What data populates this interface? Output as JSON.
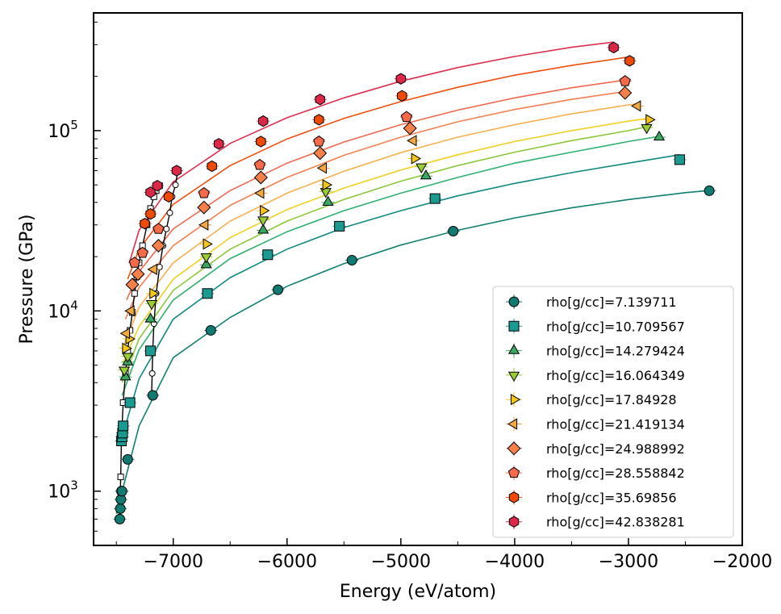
{
  "chart_data": {
    "type": "scatter",
    "xlabel": "Energy (eV/atom)",
    "ylabel": "Pressure (GPa)",
    "xlim": [
      -7700,
      -2000
    ],
    "ylim": [
      500,
      450000
    ],
    "yscale": "log",
    "xticks": [
      -7000,
      -6000,
      -5000,
      -4000,
      -3000,
      -2000
    ],
    "xtick_labels": [
      "−7000",
      "−6000",
      "−5000",
      "−4000",
      "−3000",
      "−2000"
    ],
    "yticks": [
      1000,
      10000,
      100000
    ],
    "ytick_labels": [
      {
        "base": "10",
        "exp": "3"
      },
      {
        "base": "10",
        "exp": "4"
      },
      {
        "base": "10",
        "exp": "5"
      }
    ],
    "grid": false,
    "legend_position": "lower-right",
    "series": [
      {
        "name": "rho[g/cc]=7.139711",
        "marker": "circle",
        "color": "#107a70",
        "x": [
          -7470,
          -7465,
          -7460,
          -7455,
          -7450,
          -7400,
          -7180,
          -6670,
          -6080,
          -5430,
          -4540,
          -2290
        ],
        "y": [
          700,
          800,
          900,
          1000,
          1000,
          1500,
          3400,
          7800,
          13100,
          19100,
          27700,
          46400
        ],
        "fit_x": [
          -7500,
          -7300,
          -7000,
          -6500,
          -6000,
          -5500,
          -5000,
          -4500,
          -4000,
          -3500,
          -3000,
          -2500,
          -2300
        ],
        "fit_y": [
          750,
          2300,
          5500,
          9200,
          13700,
          18300,
          23200,
          28000,
          32800,
          37300,
          41500,
          45300,
          46500
        ],
        "fit_color": "#108070"
      },
      {
        "name": "rho[g/cc]=10.709567",
        "marker": "square",
        "color": "#1a9a90",
        "x": [
          -7455,
          -7450,
          -7445,
          -7440,
          -7380,
          -7200,
          -6700,
          -6170,
          -5540,
          -4700,
          -2550
        ],
        "y": [
          1900,
          2000,
          2100,
          2300,
          3100,
          6000,
          12500,
          20500,
          29500,
          42000,
          69000
        ],
        "fit_x": [
          -7460,
          -7300,
          -7000,
          -6500,
          -6000,
          -5500,
          -5000,
          -4500,
          -4000,
          -3500,
          -3000,
          -2550
        ],
        "fit_y": [
          1900,
          4200,
          9000,
          15300,
          22000,
          29000,
          36000,
          43500,
          51000,
          58500,
          66000,
          73500
        ],
        "fit_color": "#108a80"
      },
      {
        "name": "rho[g/cc]=14.279424",
        "marker": "triangle-up",
        "color": "#3aa860",
        "x": [
          -7420,
          -7400,
          -7200,
          -6710,
          -6210,
          -5640,
          -4780,
          -2730
        ],
        "y": [
          4300,
          5200,
          9000,
          18000,
          28000,
          40000,
          56000,
          92000
        ],
        "fit_x": [
          -7450,
          -7300,
          -7000,
          -6500,
          -6000,
          -5500,
          -5000,
          -4500,
          -4000,
          -3500,
          -3000,
          -2730
        ],
        "fit_y": [
          3400,
          6100,
          11500,
          19500,
          27500,
          36000,
          45000,
          55000,
          66000,
          76000,
          87000,
          93000
        ],
        "fit_color": "#30b070"
      },
      {
        "name": "rho[g/cc]=16.064349",
        "marker": "triangle-down",
        "color": "#9acd32",
        "x": [
          -7430,
          -7400,
          -7190,
          -6710,
          -6210,
          -5660,
          -4820,
          -2840
        ],
        "y": [
          4700,
          5600,
          11000,
          20000,
          32000,
          46000,
          63000,
          104000
        ],
        "fit_x": [
          -7450,
          -7300,
          -7000,
          -6500,
          -6000,
          -5500,
          -5000,
          -4500,
          -4000,
          -3500,
          -3000,
          -2840
        ],
        "fit_y": [
          4000,
          7000,
          13000,
          22000,
          31500,
          41500,
          52500,
          64000,
          76000,
          88000,
          100000,
          105000
        ],
        "fit_color": "#8cc83c"
      },
      {
        "name": "rho[g/cc]=17.84928",
        "marker": "triangle-right",
        "color": "#f5c518",
        "x": [
          -7420,
          -7390,
          -7180,
          -6710,
          -6210,
          -5660,
          -4880,
          -2820
        ],
        "y": [
          6200,
          7000,
          12500,
          23500,
          36000,
          50000,
          70000,
          115000
        ],
        "fit_x": [
          -7440,
          -7300,
          -7000,
          -6500,
          -6000,
          -5500,
          -5000,
          -4500,
          -4000,
          -3500,
          -3000,
          -2820
        ],
        "fit_y": [
          5200,
          8200,
          15000,
          25500,
          36500,
          48000,
          60500,
          73500,
          87000,
          100000,
          113000,
          117000
        ],
        "fit_color": "#f0d020"
      },
      {
        "name": "rho[g/cc]=21.419134",
        "marker": "triangle-left",
        "color": "#f5a840",
        "x": [
          -7410,
          -7370,
          -7170,
          -6720,
          -6230,
          -5680,
          -4890,
          -2920
        ],
        "y": [
          7500,
          10000,
          17000,
          30000,
          45000,
          62000,
          88000,
          137000
        ],
        "fit_x": [
          -7430,
          -7300,
          -7000,
          -6500,
          -6000,
          -5500,
          -5000,
          -4500,
          -4000,
          -3500,
          -3000,
          -2920
        ],
        "fit_y": [
          6500,
          10500,
          18500,
          31500,
          45000,
          59500,
          75500,
          92000,
          108000,
          124000,
          139000,
          141000
        ],
        "fit_color": "#f5b050"
      },
      {
        "name": "rho[g/cc]=24.988992",
        "marker": "diamond",
        "color": "#f5804a",
        "x": [
          -7360,
          -7310,
          -7130,
          -6730,
          -6230,
          -5710,
          -4920,
          -3030
        ],
        "y": [
          14000,
          16000,
          23000,
          37500,
          55000,
          75000,
          103000,
          162000
        ],
        "fit_x": [
          -7420,
          -7300,
          -7000,
          -6500,
          -6000,
          -5500,
          -5000,
          -4500,
          -4000,
          -3500,
          -3000
        ],
        "fit_y": [
          9000,
          13500,
          23000,
          38500,
          55000,
          73000,
          92000,
          112000,
          131000,
          149000,
          166000
        ],
        "fit_color": "#f28050"
      },
      {
        "name": "rho[g/cc]=28.558842",
        "marker": "pentagon",
        "color": "#f56a48",
        "x": [
          -7340,
          -7270,
          -7130,
          -6730,
          -6240,
          -5720,
          -4950,
          -3030
        ],
        "y": [
          18500,
          21000,
          28500,
          45000,
          64500,
          87000,
          119000,
          188000
        ],
        "fit_x": [
          -7410,
          -7300,
          -7000,
          -6500,
          -6000,
          -5500,
          -5000,
          -4500,
          -4000,
          -3500,
          -3000
        ],
        "fit_y": [
          11500,
          16500,
          28500,
          46500,
          66000,
          86500,
          108000,
          130000,
          152000,
          173000,
          192000
        ],
        "fit_color": "#f06850"
      },
      {
        "name": "rho[g/cc]=35.69856",
        "marker": "hexagon",
        "color": "#ee4a08",
        "x": [
          -7250,
          -7200,
          -7040,
          -6660,
          -6230,
          -5720,
          -4990,
          -2990
        ],
        "y": [
          30500,
          34500,
          43000,
          63500,
          87000,
          115000,
          156000,
          244000
        ],
        "fit_x": [
          -7400,
          -7300,
          -7000,
          -6500,
          -6000,
          -5500,
          -5000,
          -4500,
          -4000,
          -3500,
          -3000
        ],
        "fit_y": [
          15000,
          22000,
          39000,
          64000,
          90000,
          117000,
          145000,
          174000,
          203000,
          230000,
          256000
        ],
        "fit_color": "#ee5010"
      },
      {
        "name": "rho[g/cc]=42.838281",
        "marker": "hexagon",
        "color": "#dc2848",
        "x": [
          -7200,
          -7140,
          -6970,
          -6600,
          -6210,
          -5710,
          -5000,
          -3130
        ],
        "y": [
          45500,
          49500,
          60000,
          84500,
          113000,
          149000,
          194000,
          289000
        ],
        "fit_x": [
          -7380,
          -7300,
          -7000,
          -6500,
          -6000,
          -5500,
          -5000,
          -4500,
          -4000,
          -3500,
          -3130
        ],
        "fit_y": [
          19000,
          28000,
          52000,
          85000,
          118000,
          152000,
          188000,
          224000,
          258000,
          290000,
          310000
        ],
        "fit_color": "#dc3050"
      }
    ],
    "isotherms_black": [
      {
        "x": [
          -7470,
          -7462,
          -7455,
          -7440,
          -7420,
          -7400,
          -7380,
          -7360,
          -7340,
          -7320,
          -7300,
          -7270,
          -7230,
          -7200,
          -7170,
          -7150,
          -7120
        ],
        "y": [
          700,
          1200,
          2000,
          3100,
          4500,
          6000,
          7800,
          9800,
          12500,
          15500,
          18500,
          23000,
          30000,
          37000,
          43000,
          46500,
          49500
        ],
        "open": [
          1,
          1,
          1,
          1,
          1,
          1,
          1,
          1,
          1,
          1,
          1,
          1,
          1,
          1,
          1,
          1,
          1
        ]
      },
      {
        "x": [
          -7190,
          -7185,
          -7180,
          -7170,
          -7150,
          -7120,
          -7090,
          -7060,
          -7030,
          -7010,
          -6980,
          -6960
        ],
        "y": [
          3400,
          4500,
          6000,
          8500,
          12500,
          17500,
          23000,
          28500,
          35000,
          43000,
          50000,
          60000
        ],
        "open": [
          1,
          1,
          1,
          1,
          1,
          1,
          1,
          1,
          1,
          1,
          1,
          1
        ]
      }
    ]
  }
}
